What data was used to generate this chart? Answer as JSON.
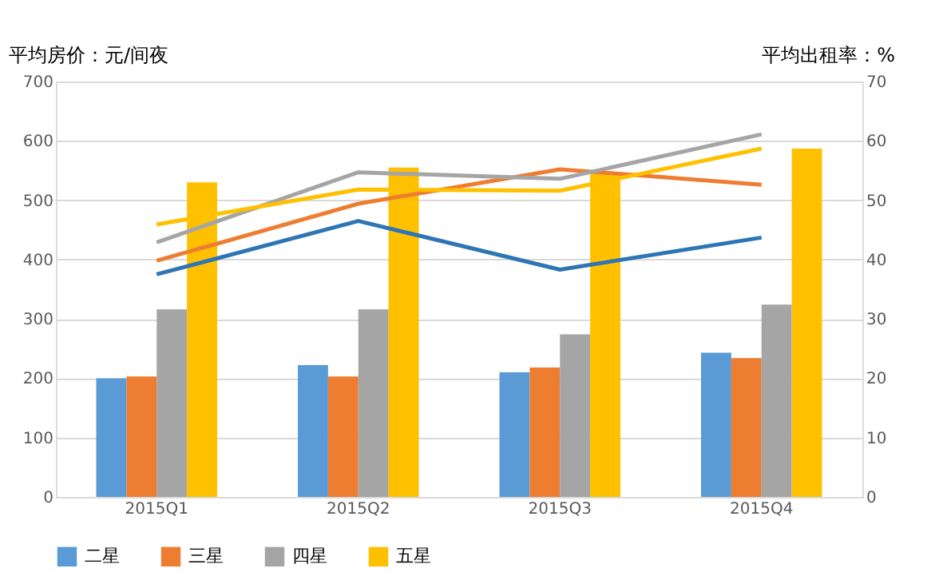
{
  "chart_data": {
    "type": "bar",
    "ylabel": "平均房价：元/间夜",
    "y2label": "平均出租率：%",
    "categories": [
      "2015Q1",
      "2015Q2",
      "2015Q3",
      "2015Q4"
    ],
    "series": [
      {
        "name": "二星",
        "color": "#5b9bd5",
        "values": [
          200,
          222,
          210,
          243
        ]
      },
      {
        "name": "三星",
        "color": "#ed7d31",
        "values": [
          203,
          203,
          218,
          234
        ]
      },
      {
        "name": "四星",
        "color": "#a5a5a5",
        "values": [
          316,
          316,
          274,
          324
        ]
      },
      {
        "name": "五星",
        "color": "#ffc000",
        "values": [
          530,
          555,
          545,
          587
        ]
      },
      {
        "type": "line",
        "axis": "y2",
        "color": "#2e75b6",
        "values": [
          37.5,
          46.5,
          38.3,
          43.7
        ]
      },
      {
        "type": "line",
        "axis": "y2",
        "color": "#ed7d31",
        "values": [
          39.8,
          49.4,
          55.2,
          52.6
        ]
      },
      {
        "type": "line",
        "axis": "y2",
        "color": "#a5a5a5",
        "values": [
          42.9,
          54.7,
          53.6,
          61.1
        ]
      },
      {
        "type": "line",
        "axis": "y2",
        "color": "#ffc000",
        "values": [
          45.9,
          51.8,
          51.6,
          58.7
        ]
      }
    ],
    "ylim": [
      0,
      700
    ],
    "yticks": [
      0,
      100,
      200,
      300,
      400,
      500,
      600,
      700
    ],
    "y2lim": [
      0,
      70
    ],
    "y2ticks": [
      0,
      10,
      20,
      30,
      40,
      50,
      60,
      70
    ],
    "grid": "y",
    "legend": "bottom",
    "marker": "none",
    "line_style": "solid"
  }
}
